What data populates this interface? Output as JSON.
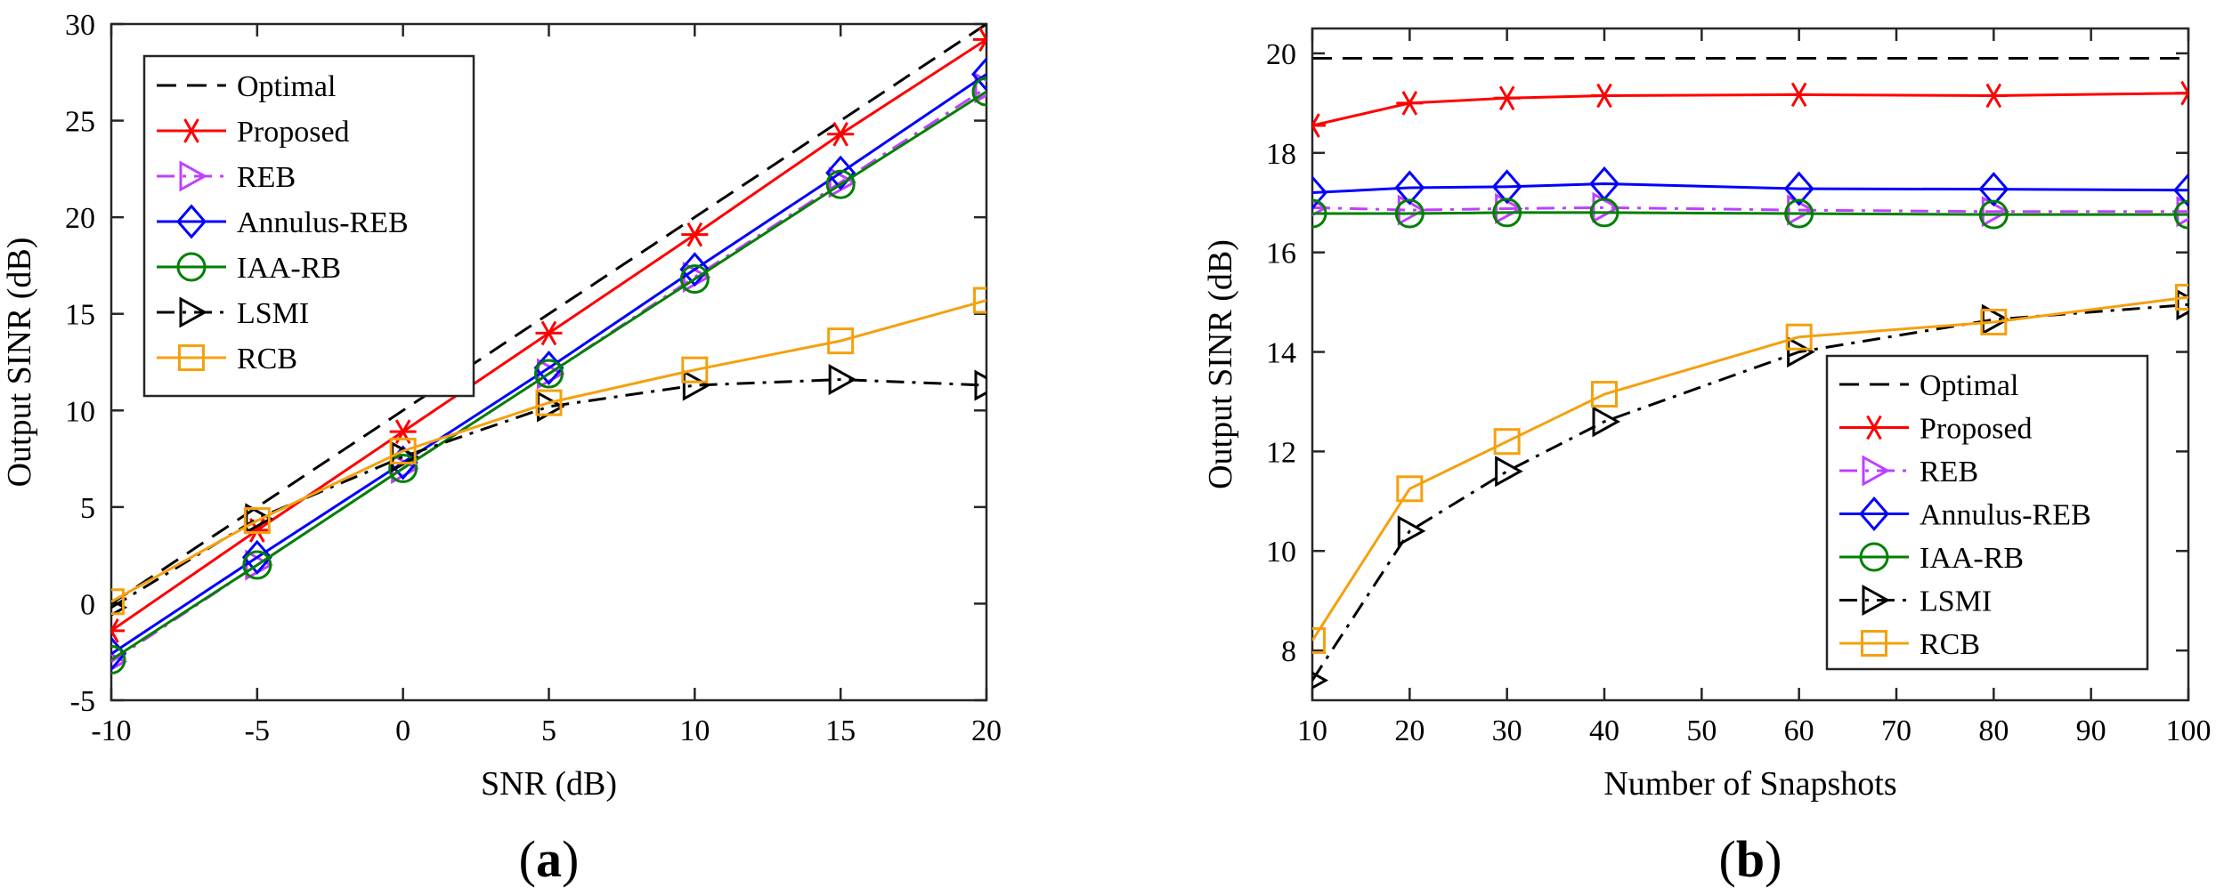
{
  "chart_data": [
    {
      "type": "line",
      "panel": "(a)",
      "panel_parts": [
        "(",
        "a",
        ")"
      ],
      "xlabel": "SNR (dB)",
      "ylabel": "Output SINR (dB)",
      "xlim": [
        -10,
        20
      ],
      "ylim": [
        -5,
        30
      ],
      "xticks": [
        -10,
        -5,
        0,
        5,
        10,
        15,
        20
      ],
      "yticks": [
        -5,
        0,
        5,
        10,
        15,
        20,
        25,
        30
      ],
      "grid": false,
      "legend_position": "top-left",
      "x": [
        -10,
        -5,
        0,
        5,
        10,
        15,
        20
      ],
      "series": [
        {
          "name": "Optimal",
          "values": [
            0,
            5,
            10,
            15,
            20,
            25,
            30
          ],
          "color": "#000000",
          "dash": "dashed",
          "marker": "none"
        },
        {
          "name": "Proposed",
          "values": [
            -1.4,
            3.8,
            8.9,
            14.0,
            19.1,
            24.3,
            29.2
          ],
          "color": "#ff0000",
          "dash": "solid",
          "marker": "asterisk"
        },
        {
          "name": "REB",
          "values": [
            -3.0,
            2.0,
            7.0,
            11.9,
            16.9,
            21.8,
            26.7
          ],
          "color": "#bf40ff",
          "dash": "dashdot",
          "marker": "triangle-right"
        },
        {
          "name": "Annulus-REB",
          "values": [
            -2.6,
            2.4,
            7.3,
            12.2,
            17.3,
            22.3,
            27.4
          ],
          "color": "#0000ff",
          "dash": "solid",
          "marker": "diamond"
        },
        {
          "name": "IAA-RB",
          "values": [
            -2.9,
            2.0,
            7.0,
            11.9,
            16.8,
            21.7,
            26.5
          ],
          "color": "#008000",
          "dash": "solid",
          "marker": "circle"
        },
        {
          "name": "LSMI",
          "values": [
            -0.2,
            4.4,
            7.6,
            10.2,
            11.3,
            11.6,
            11.3
          ],
          "color": "#000000",
          "dash": "dashdot",
          "marker": "triangle-right"
        },
        {
          "name": "RCB",
          "values": [
            0.1,
            4.3,
            7.9,
            10.4,
            12.1,
            13.6,
            15.7
          ],
          "color": "#f5a00f",
          "dash": "solid",
          "marker": "square"
        }
      ]
    },
    {
      "type": "line",
      "panel": "(b)",
      "panel_parts": [
        "(",
        "b",
        ")"
      ],
      "xlabel": "Number of Snapshots",
      "ylabel": "Output SINR (dB)",
      "xlim": [
        10,
        100
      ],
      "ylim": [
        7,
        20.5
      ],
      "xticks": [
        10,
        20,
        30,
        40,
        50,
        60,
        70,
        80,
        90,
        100
      ],
      "yticks": [
        8,
        10,
        12,
        14,
        16,
        18,
        20
      ],
      "grid": false,
      "legend_position": "bottom-right",
      "x": [
        10,
        20,
        30,
        40,
        60,
        80,
        100
      ],
      "series": [
        {
          "name": "Optimal",
          "values": [
            19.9,
            19.9,
            19.9,
            19.9,
            19.9,
            19.9,
            19.9
          ],
          "color": "#000000",
          "dash": "dashed",
          "marker": "none"
        },
        {
          "name": "Proposed",
          "values": [
            18.55,
            19.0,
            19.1,
            19.15,
            19.17,
            19.15,
            19.2
          ],
          "color": "#ff0000",
          "dash": "solid",
          "marker": "asterisk"
        },
        {
          "name": "REB",
          "values": [
            16.9,
            16.85,
            16.88,
            16.9,
            16.85,
            16.82,
            16.82
          ],
          "color": "#bf40ff",
          "dash": "dashdot",
          "marker": "triangle-right"
        },
        {
          "name": "Annulus-REB",
          "values": [
            17.2,
            17.3,
            17.32,
            17.38,
            17.28,
            17.27,
            17.25
          ],
          "color": "#0000ff",
          "dash": "solid",
          "marker": "diamond"
        },
        {
          "name": "IAA-RB",
          "values": [
            16.78,
            16.78,
            16.8,
            16.8,
            16.78,
            16.76,
            16.76
          ],
          "color": "#008000",
          "dash": "solid",
          "marker": "circle"
        },
        {
          "name": "LSMI",
          "values": [
            7.4,
            10.4,
            11.6,
            12.6,
            14.0,
            14.65,
            14.95
          ],
          "color": "#000000",
          "dash": "dashdot",
          "marker": "triangle-right"
        },
        {
          "name": "RCB",
          "values": [
            8.2,
            11.25,
            12.2,
            13.15,
            14.3,
            14.6,
            15.1
          ],
          "color": "#f5a00f",
          "dash": "solid",
          "marker": "square"
        }
      ]
    }
  ]
}
